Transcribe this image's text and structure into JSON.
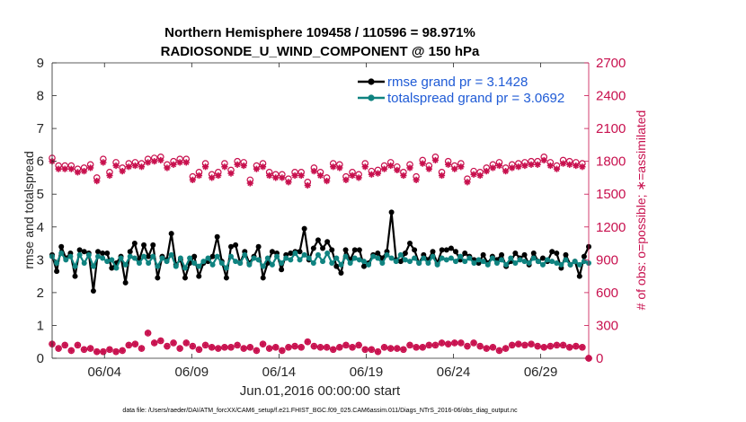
{
  "chart_data": {
    "type": "line",
    "title_line1": "Northern Hemisphere 109458 / 110596 = 98.971%",
    "title_line2": "RADIOSONDE_U_WIND_COMPONENT @ 150 hPa",
    "xlabel": "Jun.01,2016 00:00:00 start",
    "ylabel_left": "rmse and totalspread",
    "ylabel_right": "# of obs: o=possible; ∗=assimilated",
    "footnote": "data file: /Users/raeder/DAI/ATM_forcXX/CAM6_setup/f.e21.FHIST_BGC.f09_025.CAM6assim.011/Diags_NTrS_2016-06/obs_diag_output.nc",
    "xlim": [
      1.0,
      31.75
    ],
    "x_ticks": [
      4,
      9,
      14,
      19,
      24,
      29
    ],
    "x_tick_labels": [
      "06/04",
      "06/09",
      "06/14",
      "06/19",
      "06/24",
      "06/29"
    ],
    "ylim_left": [
      0,
      9
    ],
    "y_ticks_left": [
      "0",
      "1",
      "2",
      "3",
      "4",
      "5",
      "6",
      "7",
      "8",
      "9"
    ],
    "ylim_right": [
      0,
      2700
    ],
    "y_ticks_right": [
      "0",
      "300",
      "600",
      "900",
      "1200",
      "1500",
      "1800",
      "2100",
      "2400",
      "2700"
    ],
    "colors": {
      "rmse": "#000000",
      "spread": "#0f8380",
      "obs": "#c8104e",
      "legend_text": "#1f5bd6",
      "axis": "#262626"
    },
    "series": [
      {
        "name": "rmse",
        "legend": "rmse grand pr = 3.1428",
        "values": [
          3.15,
          2.65,
          3.4,
          3.05,
          3.2,
          2.5,
          3.3,
          3.25,
          3.2,
          2.05,
          3.25,
          3.2,
          3.2,
          2.75,
          2.9,
          3.1,
          2.3,
          3.25,
          3.5,
          3.0,
          3.45,
          3.1,
          3.45,
          2.45,
          3.1,
          3.0,
          3.8,
          2.85,
          3.0,
          2.45,
          2.9,
          3.1,
          2.5,
          2.9,
          2.95,
          3.1,
          3.7,
          2.95,
          2.45,
          3.4,
          3.45,
          2.9,
          3.25,
          2.9,
          3.1,
          3.4,
          2.45,
          2.9,
          3.25,
          3.2,
          2.7,
          3.15,
          3.2,
          3.25,
          3.25,
          3.95,
          3.0,
          3.35,
          3.6,
          3.35,
          3.55,
          3.3,
          2.8,
          2.6,
          3.3,
          3.0,
          3.3,
          3.3,
          2.8,
          2.9,
          3.15,
          3.2,
          3.05,
          3.25,
          4.45,
          3.0,
          2.95,
          3.2,
          3.5,
          3.3,
          2.9,
          3.15,
          3.0,
          3.25,
          2.9,
          3.3,
          3.3,
          3.35,
          3.25,
          3.0,
          3.2,
          3.1,
          3.0,
          2.9,
          3.15,
          2.9,
          3.1,
          3.0,
          3.15,
          2.8,
          2.95,
          3.2,
          3.05,
          3.15,
          2.85,
          3.2,
          2.95,
          3.05,
          2.95,
          3.25,
          3.2,
          2.75,
          3.15,
          2.85,
          2.95,
          2.5,
          3.1,
          3.4
        ]
      },
      {
        "name": "totalspread",
        "legend": "totalspread grand pr = 3.0692",
        "values": [
          3.1,
          2.9,
          3.2,
          3.0,
          3.1,
          2.8,
          3.15,
          2.9,
          3.15,
          2.8,
          3.1,
          3.05,
          2.95,
          3.0,
          2.75,
          3.05,
          2.85,
          3.1,
          3.05,
          2.9,
          3.1,
          2.9,
          3.1,
          2.8,
          3.05,
          2.95,
          3.15,
          2.8,
          3.05,
          2.75,
          3.05,
          2.9,
          2.8,
          2.95,
          3.05,
          2.85,
          3.1,
          2.9,
          2.75,
          3.1,
          2.95,
          2.9,
          3.15,
          2.85,
          3.05,
          3.0,
          2.8,
          3.05,
          2.85,
          3.1,
          2.9,
          3.05,
          3.0,
          3.2,
          3.0,
          3.15,
          3.05,
          2.9,
          3.15,
          2.95,
          3.2,
          2.9,
          3.05,
          2.85,
          3.1,
          2.9,
          3.05,
          3.0,
          2.95,
          2.85,
          3.1,
          3.05,
          2.9,
          3.15,
          3.05,
          2.95,
          3.15,
          3.0,
          2.95,
          3.05,
          2.9,
          3.05,
          2.9,
          3.1,
          2.85,
          3.05,
          3.0,
          3.05,
          2.95,
          3.1,
          2.95,
          3.05,
          2.9,
          3.0,
          2.95,
          2.85,
          3.05,
          2.9,
          3.0,
          2.85,
          3.05,
          2.9,
          3.0,
          2.95,
          2.9,
          3.05,
          2.95,
          2.85,
          3.0,
          2.95,
          2.9,
          2.85,
          3.0,
          2.85,
          2.95,
          2.85,
          2.95,
          2.9
        ]
      }
    ],
    "obs_series": [
      {
        "name": "possible",
        "marker": "o",
        "values": [
          1830,
          1760,
          1760,
          1760,
          1730,
          1740,
          1770,
          1650,
          1820,
          1700,
          1790,
          1740,
          1780,
          1790,
          1780,
          1820,
          1830,
          1840,
          1770,
          1800,
          1820,
          1820,
          1660,
          1700,
          1780,
          1680,
          1700,
          1780,
          1720,
          1800,
          1790,
          1630,
          1760,
          1780,
          1700,
          1680,
          1680,
          1640,
          1700,
          1700,
          1610,
          1740,
          1700,
          1650,
          1780,
          1770,
          1660,
          1700,
          1680,
          1780,
          1710,
          1720,
          1760,
          1790,
          1750,
          1700,
          1770,
          1660,
          1810,
          1760,
          1840,
          1700,
          1800,
          1760,
          1780,
          1640,
          1710,
          1700,
          1740,
          1770,
          1790,
          1740,
          1770,
          1780,
          1790,
          1800,
          1800,
          1840,
          1790,
          1760,
          1810,
          1800,
          1790,
          1780,
          0
        ],
        "assimilated": [
          1800,
          1730,
          1730,
          1730,
          1700,
          1710,
          1740,
          1620,
          1790,
          1670,
          1760,
          1710,
          1750,
          1760,
          1750,
          1790,
          1800,
          1810,
          1740,
          1770,
          1790,
          1790,
          1630,
          1670,
          1750,
          1650,
          1670,
          1750,
          1690,
          1770,
          1760,
          1600,
          1730,
          1750,
          1670,
          1650,
          1650,
          1610,
          1670,
          1670,
          1580,
          1710,
          1670,
          1620,
          1750,
          1740,
          1630,
          1670,
          1650,
          1750,
          1680,
          1690,
          1730,
          1760,
          1720,
          1670,
          1740,
          1630,
          1780,
          1730,
          1810,
          1670,
          1770,
          1730,
          1750,
          1610,
          1680,
          1670,
          1710,
          1740,
          1760,
          1710,
          1740,
          1750,
          1760,
          1770,
          1770,
          1810,
          1760,
          1730,
          1780,
          1770,
          1760,
          1750,
          0
        ]
      },
      {
        "name": "low",
        "marker": "*",
        "values": [
          130,
          90,
          120,
          70,
          120,
          80,
          90,
          60,
          60,
          80,
          60,
          70,
          120,
          130,
          90,
          230,
          140,
          160,
          110,
          140,
          90,
          140,
          110,
          80,
          120,
          100,
          90,
          100,
          100,
          120,
          90,
          100,
          70,
          130,
          90,
          100,
          70,
          100,
          110,
          100,
          150,
          110,
          100,
          100,
          80,
          100,
          120,
          100,
          120,
          80,
          80,
          60,
          100,
          90,
          90,
          80,
          120,
          100,
          100,
          120,
          120,
          140,
          130,
          140,
          140,
          110,
          140,
          110,
          90,
          100,
          70,
          90,
          120,
          130,
          120,
          130,
          110,
          100,
          110,
          120,
          120,
          100,
          110,
          100,
          0
        ]
      }
    ]
  }
}
